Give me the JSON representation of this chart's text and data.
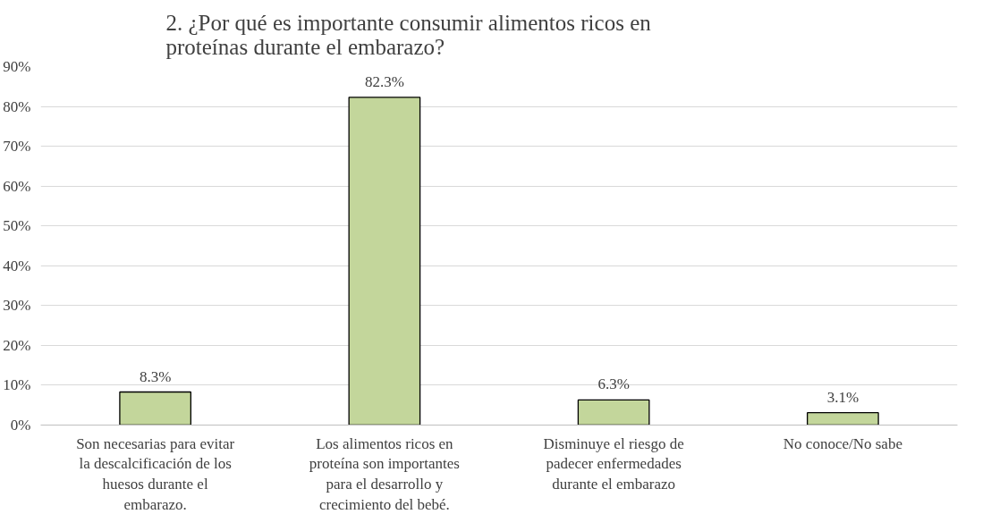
{
  "chart_data": {
    "type": "bar",
    "title": "2. ¿Por qué es importante consumir alimentos ricos en proteínas durante el embarazo?",
    "categories": [
      "Son necesarias para evitar la descalcificación de los huesos durante el embarazo.",
      "Los alimentos ricos en proteína son importantes para el desarrollo y crecimiento del bebé.",
      "Disminuye el riesgo de padecer enfermedades durante el embarazo",
      "No conoce/No sabe"
    ],
    "values": [
      8.3,
      82.3,
      6.3,
      3.1
    ],
    "value_labels": [
      "8.3%",
      "82.3%",
      "6.3%",
      "3.1%"
    ],
    "color": "#c3d69b",
    "ylim": [
      0,
      90
    ],
    "yticks": [
      {
        "value": 0,
        "label": "0%"
      },
      {
        "value": 10,
        "label": "10%"
      },
      {
        "value": 20,
        "label": "20%"
      },
      {
        "value": 30,
        "label": "30%"
      },
      {
        "value": 40,
        "label": "40%"
      },
      {
        "value": 50,
        "label": "50%"
      },
      {
        "value": 60,
        "label": "60%"
      },
      {
        "value": 70,
        "label": "70%"
      },
      {
        "value": 80,
        "label": "80%"
      },
      {
        "value": 90,
        "label": "90%"
      }
    ],
    "grid": "y"
  }
}
